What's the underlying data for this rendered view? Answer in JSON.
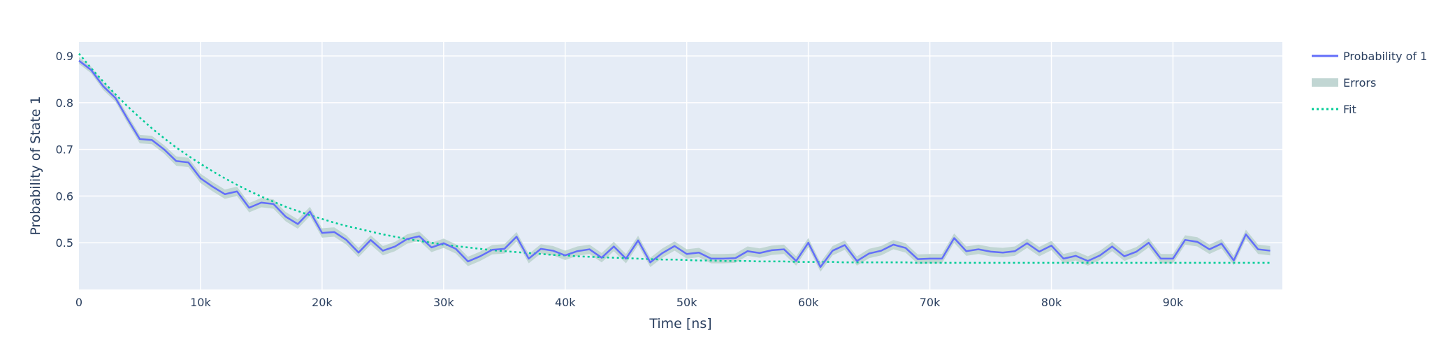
{
  "chart_data": {
    "type": "line",
    "title": "",
    "xlabel": "Time [ns]",
    "ylabel": "Probability of State 1",
    "xlim": [
      0,
      99000
    ],
    "ylim": [
      0.4,
      0.93
    ],
    "x_ticks": [
      0,
      10000,
      20000,
      30000,
      40000,
      50000,
      60000,
      70000,
      80000,
      90000
    ],
    "x_tick_labels": [
      "0",
      "10k",
      "20k",
      "30k",
      "40k",
      "50k",
      "60k",
      "70k",
      "80k",
      "90k"
    ],
    "y_ticks": [
      0.5,
      0.6,
      0.7,
      0.8,
      0.9
    ],
    "y_tick_labels": [
      "0.5",
      "0.6",
      "0.7",
      "0.8",
      "0.9"
    ],
    "grid": true,
    "legend_position": "top-right",
    "legend": [
      {
        "label": "Probability of 1",
        "kind": "line",
        "color": "#636efa"
      },
      {
        "label": "Errors",
        "kind": "band",
        "color": "#c1d6d3"
      },
      {
        "label": "Fit",
        "kind": "dotted",
        "color": "#00cc96"
      }
    ],
    "colors": {
      "plot_bg": "#e5ecf6",
      "grid": "#ffffff",
      "text": "#2a3f5f",
      "series": "#636efa",
      "band": "#c1d6d3",
      "fit": "#00cc96"
    },
    "x_step": 1000,
    "series": [
      {
        "name": "Probability of 1",
        "values": [
          0.89,
          0.87,
          0.835,
          0.81,
          0.765,
          0.722,
          0.72,
          0.7,
          0.675,
          0.672,
          0.638,
          0.62,
          0.604,
          0.61,
          0.575,
          0.586,
          0.583,
          0.556,
          0.54,
          0.567,
          0.521,
          0.523,
          0.506,
          0.479,
          0.506,
          0.483,
          0.492,
          0.508,
          0.514,
          0.49,
          0.499,
          0.487,
          0.46,
          0.471,
          0.485,
          0.487,
          0.513,
          0.466,
          0.487,
          0.483,
          0.473,
          0.482,
          0.486,
          0.468,
          0.492,
          0.466,
          0.505,
          0.458,
          0.478,
          0.493,
          0.476,
          0.479,
          0.466,
          0.466,
          0.467,
          0.482,
          0.478,
          0.484,
          0.486,
          0.461,
          0.5,
          0.448,
          0.483,
          0.495,
          0.461,
          0.477,
          0.483,
          0.496,
          0.489,
          0.465,
          0.466,
          0.466,
          0.51,
          0.482,
          0.486,
          0.481,
          0.479,
          0.482,
          0.499,
          0.481,
          0.494,
          0.466,
          0.472,
          0.461,
          0.473,
          0.492,
          0.471,
          0.481,
          0.5,
          0.466,
          0.466,
          0.506,
          0.502,
          0.486,
          0.498,
          0.462,
          0.518,
          0.486,
          0.483
        ]
      }
    ],
    "errors": [
      0.007,
      0.007,
      0.008,
      0.008,
      0.009,
      0.009,
      0.009,
      0.009,
      0.01,
      0.01,
      0.01,
      0.01,
      0.01,
      0.01,
      0.01,
      0.01,
      0.01,
      0.01,
      0.01,
      0.01,
      0.01,
      0.01,
      0.01,
      0.01,
      0.01,
      0.01,
      0.01,
      0.01,
      0.01,
      0.01,
      0.01,
      0.01,
      0.01,
      0.01,
      0.01,
      0.01,
      0.01,
      0.01,
      0.01,
      0.01,
      0.01,
      0.01,
      0.01,
      0.01,
      0.01,
      0.01,
      0.01,
      0.01,
      0.01,
      0.01,
      0.01,
      0.01,
      0.01,
      0.01,
      0.01,
      0.01,
      0.01,
      0.01,
      0.01,
      0.01,
      0.01,
      0.01,
      0.01,
      0.01,
      0.01,
      0.01,
      0.01,
      0.01,
      0.01,
      0.01,
      0.01,
      0.01,
      0.01,
      0.01,
      0.01,
      0.01,
      0.01,
      0.01,
      0.01,
      0.01,
      0.01,
      0.01,
      0.01,
      0.01,
      0.01,
      0.01,
      0.01,
      0.01,
      0.01,
      0.01,
      0.01,
      0.01,
      0.01,
      0.01,
      0.01,
      0.01,
      0.01,
      0.01,
      0.01
    ],
    "fit": {
      "values": [
        0.905,
        0.874,
        0.845,
        0.818,
        0.792,
        0.768,
        0.745,
        0.724,
        0.704,
        0.686,
        0.669,
        0.653,
        0.638,
        0.624,
        0.611,
        0.599,
        0.588,
        0.577,
        0.568,
        0.559,
        0.551,
        0.543,
        0.536,
        0.53,
        0.524,
        0.518,
        0.513,
        0.508,
        0.504,
        0.5,
        0.496,
        0.493,
        0.49,
        0.487,
        0.484,
        0.482,
        0.48,
        0.478,
        0.476,
        0.474,
        0.473,
        0.471,
        0.47,
        0.469,
        0.468,
        0.467,
        0.466,
        0.465,
        0.464,
        0.464,
        0.463,
        0.462,
        0.462,
        0.461,
        0.461,
        0.461,
        0.46,
        0.46,
        0.46,
        0.459,
        0.459,
        0.459,
        0.459,
        0.458,
        0.458,
        0.458,
        0.458,
        0.458,
        0.458,
        0.457,
        0.457,
        0.457,
        0.457,
        0.457,
        0.457,
        0.457,
        0.457,
        0.457,
        0.457,
        0.457,
        0.457,
        0.457,
        0.457,
        0.457,
        0.457,
        0.457,
        0.457,
        0.457,
        0.457,
        0.457,
        0.457,
        0.457,
        0.457,
        0.457,
        0.457,
        0.457,
        0.457,
        0.457,
        0.457
      ]
    }
  }
}
